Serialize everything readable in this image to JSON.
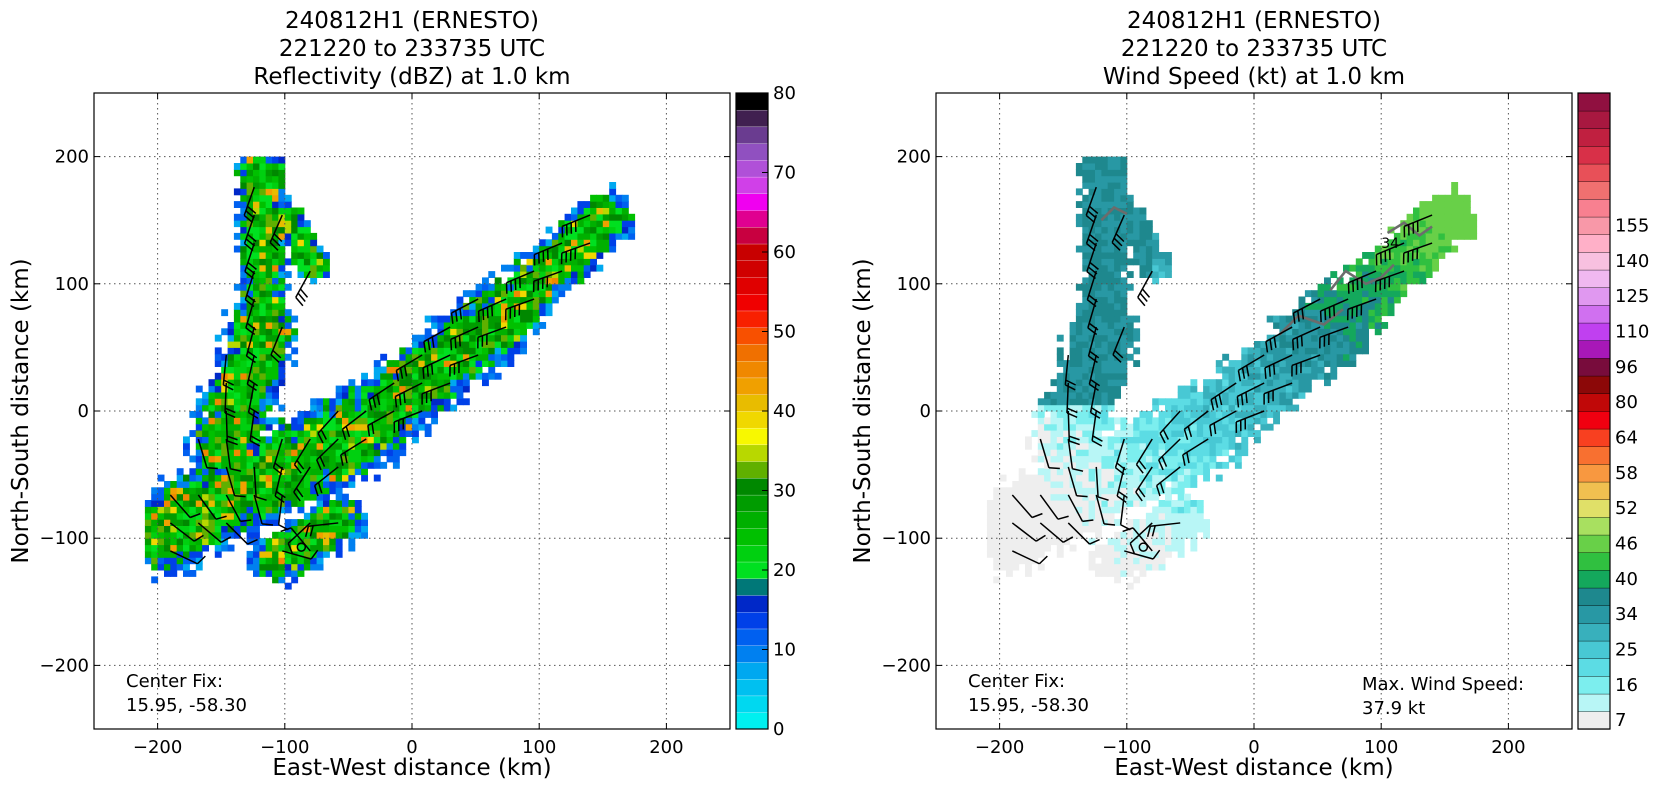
{
  "chart_data": [
    {
      "type": "heatmap",
      "title": [
        "240812H1 (ERNESTO)",
        "221220 to 233735 UTC",
        "Reflectivity (dBZ) at 1.0 km"
      ],
      "xlabel": "East-West distance (km)",
      "ylabel": "North-South distance (km)",
      "xlim": [
        -250,
        250
      ],
      "ylim": [
        -250,
        250
      ],
      "xticks": [
        -200,
        -100,
        0,
        100,
        200
      ],
      "yticks": [
        -200,
        -100,
        0,
        100,
        200
      ],
      "grid": true,
      "annotations": {
        "center_fix_label": "Center Fix:",
        "center_fix_value": "15.95, -58.30",
        "center_marker": [
          -87,
          -107
        ]
      },
      "colorbar": {
        "min": 0,
        "max": 80,
        "tick_values": [
          0,
          10,
          20,
          30,
          40,
          50,
          60,
          70,
          80
        ],
        "tick_labels": [
          "0",
          "10",
          "20",
          "30",
          "40",
          "50",
          "60",
          "70",
          "80"
        ],
        "colors": [
          "#00f0f0",
          "#00d8f0",
          "#00c0f0",
          "#00a8f0",
          "#0080f0",
          "#0060f0",
          "#0040e8",
          "#0028c8",
          "#007878",
          "#00e020",
          "#00d010",
          "#00c000",
          "#00b000",
          "#009c00",
          "#008800",
          "#60b000",
          "#b8d800",
          "#f8f800",
          "#f0d800",
          "#e8bc00",
          "#f0a000",
          "#f08800",
          "#f07000",
          "#f85000",
          "#f82000",
          "#f00000",
          "#e00000",
          "#d00000",
          "#c80000",
          "#c80040",
          "#e00090",
          "#f000f0",
          "#d040e8",
          "#b050d8",
          "#9050c0",
          "#6a3c90",
          "#402050",
          "#000000"
        ]
      },
      "wind_barbs_shown": true
    },
    {
      "type": "heatmap",
      "title": [
        "240812H1 (ERNESTO)",
        "221220 to 233735 UTC",
        "Wind Speed (kt) at 1.0 km"
      ],
      "xlabel": "East-West distance (km)",
      "ylabel": "North-South distance (km)",
      "xlim": [
        -250,
        250
      ],
      "ylim": [
        -250,
        250
      ],
      "xticks": [
        -200,
        -100,
        0,
        100,
        200
      ],
      "yticks": [
        -200,
        -100,
        0,
        100,
        200
      ],
      "grid": true,
      "annotations": {
        "center_fix_label": "Center Fix:",
        "center_fix_value": "15.95, -58.30",
        "center_marker": [
          -87,
          -107
        ],
        "max_wind_label": "Max. Wind Speed:",
        "max_wind_value": "37.9 kt",
        "contour_label": "34"
      },
      "colorbar": {
        "tick_labels": [
          "7",
          "16",
          "25",
          "34",
          "40",
          "46",
          "52",
          "58",
          "64",
          "80",
          "96",
          "110",
          "125",
          "140",
          "155"
        ],
        "tick_bins": [
          0,
          2,
          4,
          6,
          8,
          10,
          12,
          14,
          16,
          18,
          20,
          22,
          24,
          26,
          28
        ],
        "colors": [
          "#eeeeee",
          "#b8f6f6",
          "#7ceeee",
          "#5cdce4",
          "#48c8d4",
          "#38b0bc",
          "#2898a4",
          "#1e888e",
          "#14a85c",
          "#30c040",
          "#68d048",
          "#a8e060",
          "#e0e068",
          "#f0c050",
          "#f89840",
          "#f87030",
          "#f84020",
          "#f00010",
          "#c00808",
          "#8c0808",
          "#780c3c",
          "#a818b8",
          "#c040f0",
          "#d070f0",
          "#e098f0",
          "#f0b8f0",
          "#f8c0e0",
          "#ffb0c8",
          "#f898a8",
          "#f88090",
          "#f07070",
          "#e85058",
          "#d83048",
          "#c02040",
          "#a81840",
          "#901040"
        ]
      },
      "wind_barbs_shown": true
    }
  ]
}
